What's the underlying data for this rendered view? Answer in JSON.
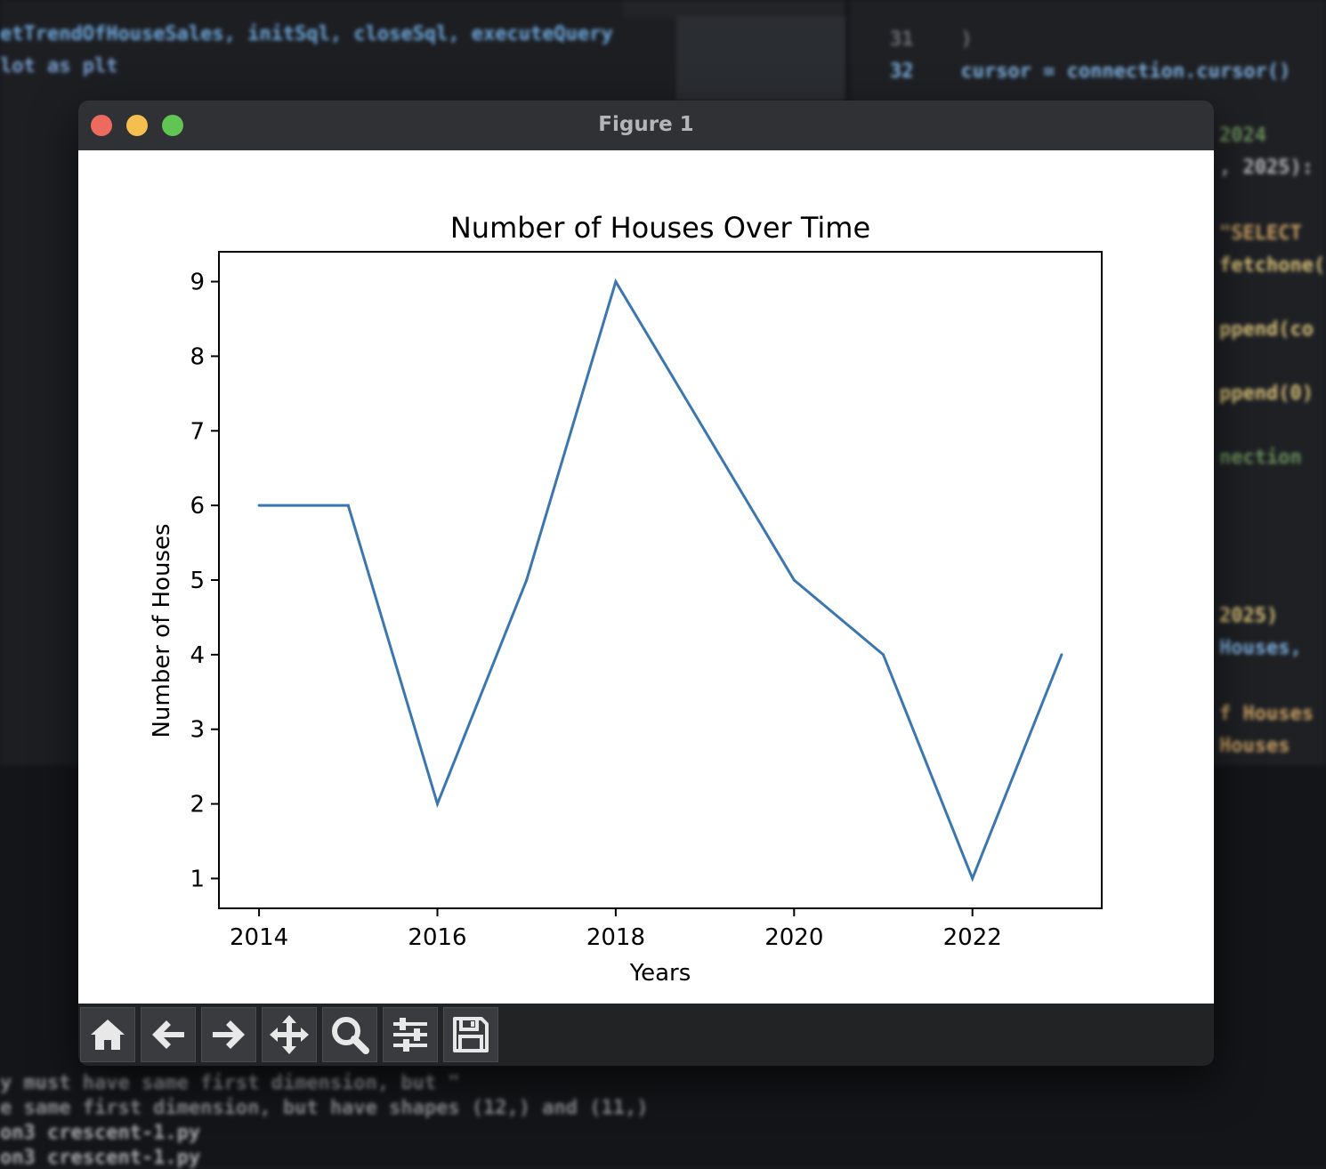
{
  "window": {
    "title": "Figure 1"
  },
  "chart_data": {
    "type": "line",
    "title": "Number of Houses Over Time",
    "xlabel": "Years",
    "ylabel": "Number of Houses",
    "x": [
      2014,
      2015,
      2016,
      2017,
      2018,
      2019,
      2020,
      2021,
      2022,
      2023
    ],
    "values": [
      6,
      6,
      2,
      5,
      9,
      7,
      5,
      4,
      1,
      4
    ],
    "xlim": [
      2013.55,
      2023.45
    ],
    "ylim": [
      0.6,
      9.4
    ],
    "xticks": [
      2014,
      2016,
      2018,
      2020,
      2022
    ],
    "yticks": [
      1,
      2,
      3,
      4,
      5,
      6,
      7,
      8,
      9
    ],
    "line_color": "#3a76af",
    "grid": false,
    "legend": "none"
  },
  "toolbar": {
    "buttons": [
      {
        "icon": "home-icon"
      },
      {
        "icon": "back-arrow-icon"
      },
      {
        "icon": "forward-arrow-icon"
      },
      {
        "icon": "pan-move-icon"
      },
      {
        "icon": "zoom-magnifier-icon"
      },
      {
        "icon": "configure-sliders-icon"
      },
      {
        "icon": "save-floppy-icon"
      }
    ]
  }
}
